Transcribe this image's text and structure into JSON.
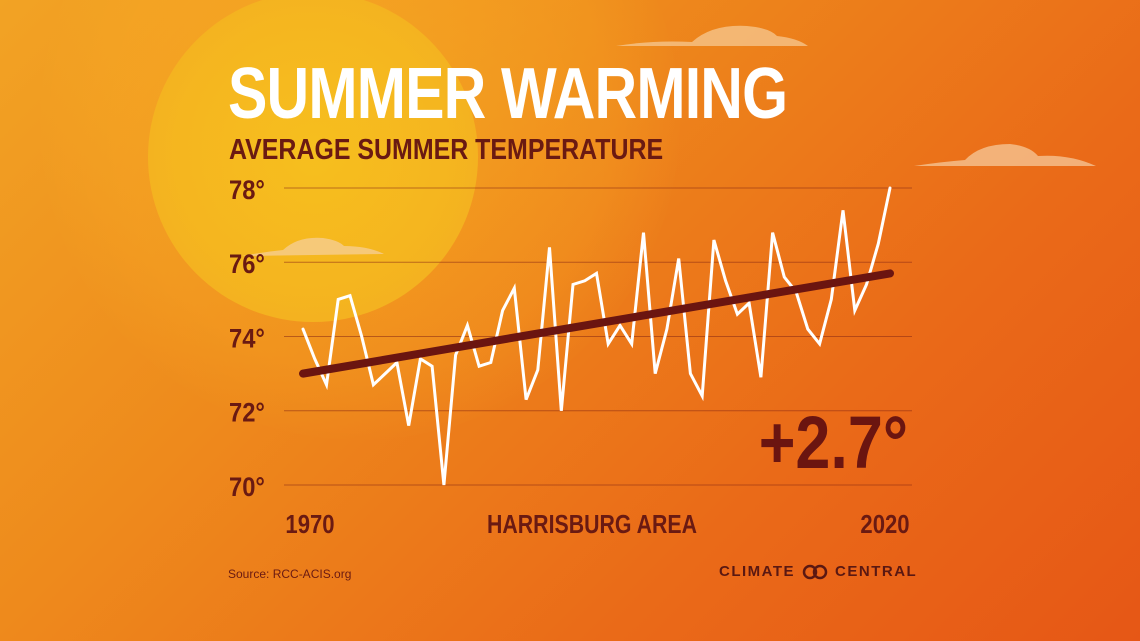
{
  "header": {
    "title": "SUMMER WARMING",
    "subtitle": "AVERAGE SUMMER TEMPERATURE"
  },
  "footer": {
    "source": "Source: RCC-ACIS.org",
    "brand_left": "CLIMATE",
    "brand_right": "CENTRAL"
  },
  "colors": {
    "background_top": "#f2a324",
    "background_bottom": "#e65716",
    "sun": "#f5b81f",
    "line": "#ffffff",
    "trend": "#6b1510",
    "text_dark": "#6a1a12"
  },
  "chart_data": {
    "type": "line",
    "title": "AVERAGE SUMMER TEMPERATURE",
    "xlabel": "HARRISBURG AREA",
    "ylabel": "",
    "xlim": [
      1970,
      2020
    ],
    "ylim": [
      70,
      78
    ],
    "x_tick_labels": [
      "1970",
      "2020"
    ],
    "y_ticks": [
      70,
      72,
      74,
      76,
      78
    ],
    "y_tick_labels": [
      "70°",
      "72°",
      "74°",
      "76°",
      "78°"
    ],
    "grid": "horizontal",
    "annotation": "+2.7°",
    "series": [
      {
        "values": [
          [
            1970,
            74.2
          ],
          [
            1971,
            73.4
          ],
          [
            1972,
            72.7
          ],
          [
            1973,
            75.0
          ],
          [
            1974,
            75.1
          ],
          [
            1975,
            74.0
          ],
          [
            1976,
            72.7
          ],
          [
            1977,
            73.0
          ],
          [
            1978,
            73.3
          ],
          [
            1979,
            71.6
          ],
          [
            1980,
            73.4
          ],
          [
            1981,
            73.2
          ],
          [
            1982,
            70.0
          ],
          [
            1983,
            73.5
          ],
          [
            1984,
            74.3
          ],
          [
            1985,
            73.2
          ],
          [
            1986,
            73.3
          ],
          [
            1987,
            74.7
          ],
          [
            1988,
            75.3
          ],
          [
            1989,
            72.3
          ],
          [
            1990,
            73.1
          ],
          [
            1991,
            76.4
          ],
          [
            1992,
            72.0
          ],
          [
            1993,
            75.4
          ],
          [
            1994,
            75.5
          ],
          [
            1995,
            75.7
          ],
          [
            1996,
            73.8
          ],
          [
            1997,
            74.3
          ],
          [
            1998,
            73.8
          ],
          [
            1999,
            76.8
          ],
          [
            2000,
            73.0
          ],
          [
            2001,
            74.2
          ],
          [
            2002,
            76.1
          ],
          [
            2003,
            73.0
          ],
          [
            2004,
            72.4
          ],
          [
            2005,
            76.6
          ],
          [
            2006,
            75.5
          ],
          [
            2007,
            74.6
          ],
          [
            2008,
            74.9
          ],
          [
            2009,
            72.9
          ],
          [
            2010,
            76.8
          ],
          [
            2011,
            75.6
          ],
          [
            2012,
            75.2
          ],
          [
            2013,
            74.2
          ],
          [
            2014,
            73.8
          ],
          [
            2015,
            75.0
          ],
          [
            2016,
            77.4
          ],
          [
            2017,
            74.7
          ],
          [
            2018,
            75.4
          ],
          [
            2019,
            76.5
          ],
          [
            2020,
            78.0
          ]
        ]
      }
    ],
    "trend": {
      "x": [
        1970,
        2020
      ],
      "y": [
        73.0,
        75.7
      ]
    }
  }
}
